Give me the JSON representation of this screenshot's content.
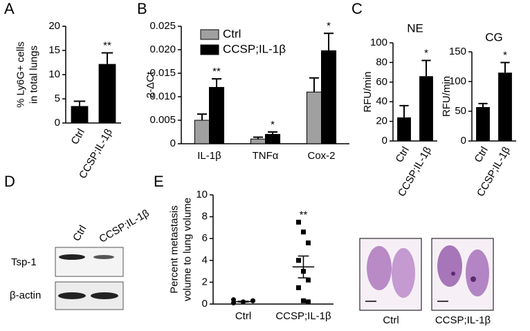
{
  "panel_labels": [
    "A",
    "B",
    "C",
    "D",
    "E"
  ],
  "chart_data": [
    {
      "type": "bar",
      "ylabel": [
        "% Ly6G+ cells",
        "in total lungs"
      ],
      "categories": [
        "Ctrl",
        "CCSP;IL-1β"
      ],
      "values": [
        3.5,
        12.2
      ],
      "errors": [
        1.0,
        2.3
      ],
      "color": "#000000",
      "significance": [
        "**"
      ],
      "ylim": [
        0,
        20
      ],
      "yticks": [
        0,
        5,
        10,
        15,
        20
      ]
    },
    {
      "type": "grouped_bar",
      "ylabel": "2-ΔCt",
      "categories": [
        "IL-1β",
        "TNFα",
        "Cox-2"
      ],
      "series": [
        {
          "name": "Ctrl",
          "color": "#a0a0a0",
          "values": [
            0.005,
            0.001,
            0.011
          ],
          "errors": [
            0.0013,
            0.0004,
            0.003
          ]
        },
        {
          "name": "CCSP;IL-1β",
          "color": "#000000",
          "values": [
            0.012,
            0.002,
            0.0198
          ],
          "errors": [
            0.0018,
            0.0005,
            0.0037
          ]
        }
      ],
      "significance": [
        "**",
        "*",
        "*"
      ],
      "legend": "top-left",
      "ylim": [
        0,
        0.025
      ],
      "yticks": [
        0,
        0.005,
        {
          "value": 0.01,
          "label": "0.010"
        },
        0.015,
        {
          "value": 0.02,
          "label": "0.020"
        },
        0.025
      ]
    },
    {
      "type": "bar",
      "title": "NE",
      "ylabel": [
        "RFU/min"
      ],
      "categories": [
        "Ctrl",
        "CCSP;IL-1β"
      ],
      "values": [
        24,
        66
      ],
      "errors": [
        12,
        16
      ],
      "color": "#000000",
      "significance": [
        "*"
      ],
      "ylim": [
        0,
        100
      ],
      "yticks": [
        0,
        20,
        40,
        60,
        80,
        100
      ]
    },
    {
      "type": "bar",
      "title": "CG",
      "ylabel": [
        "RFU/min"
      ],
      "categories": [
        "Ctrl",
        "CCSP;IL-1β"
      ],
      "values": [
        57,
        115
      ],
      "errors": [
        6,
        17
      ],
      "color": "#000000",
      "significance": [
        "*"
      ],
      "ylim": [
        0,
        150
      ],
      "yticks": [
        0,
        50,
        100,
        150
      ]
    },
    {
      "type": "dotplot",
      "ylabel": [
        "Percent metastasis",
        "volume to lung volume"
      ],
      "categories": [
        "Ctrl",
        "CCSP;IL-1β"
      ],
      "groups": [
        {
          "values": [
            0.1,
            0.2,
            0.3,
            0.4,
            0.2,
            0.3,
            0.1,
            0.2
          ],
          "mean": 0.22,
          "sem": 0.04,
          "marker": "circle"
        },
        {
          "values": [
            7.5,
            6.6,
            5.6,
            4.0,
            3.0,
            2.2,
            1.5,
            0.3,
            0.2
          ],
          "mean": 3.4,
          "sem": 1.0,
          "marker": "square"
        }
      ],
      "significance": [
        "**"
      ],
      "color": "#000000",
      "ylim": [
        0,
        10
      ],
      "yticks": [
        0,
        2,
        4,
        6,
        8,
        10
      ]
    }
  ],
  "blot": {
    "lanes": [
      "Ctrl",
      "CCSP;IL-1β"
    ],
    "rows": [
      "Tsp-1",
      "β-actin"
    ]
  },
  "histology": {
    "labels": [
      "Ctrl",
      "CCSP;IL-1β"
    ]
  }
}
